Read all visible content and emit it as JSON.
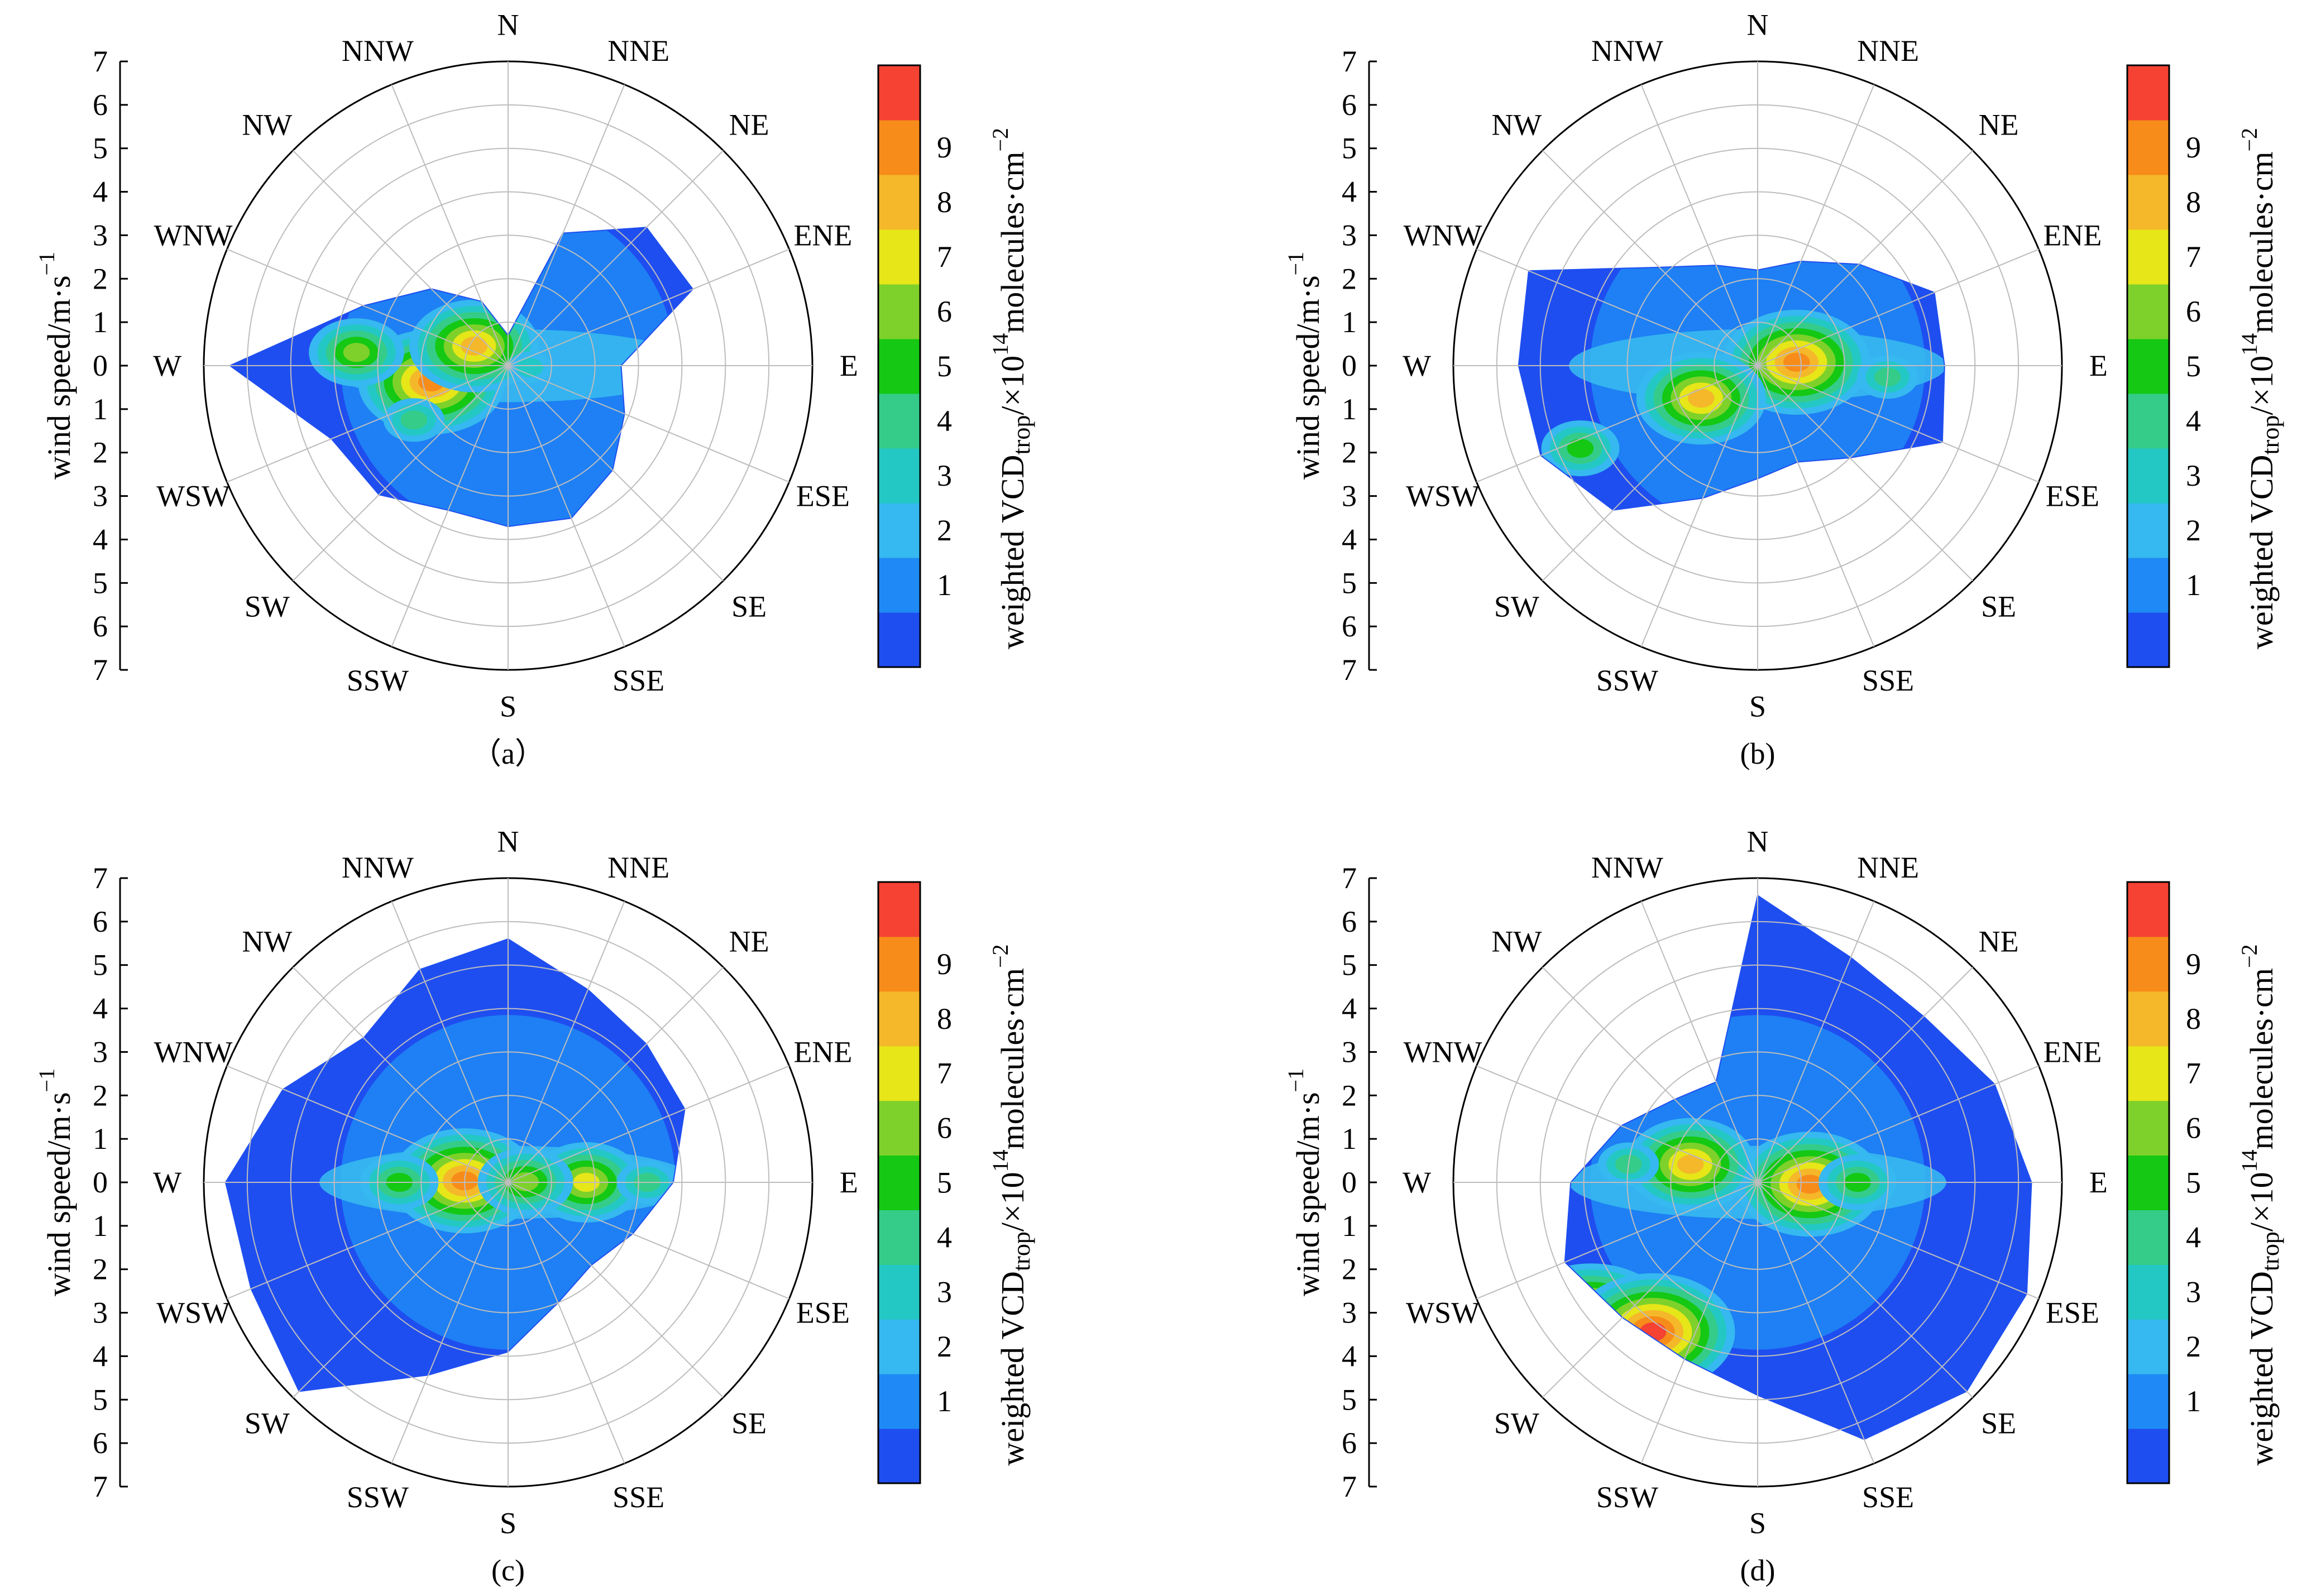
{
  "figure": {
    "direction_labels": [
      "N",
      "NNE",
      "NE",
      "ENE",
      "E",
      "ESE",
      "SE",
      "SSE",
      "S",
      "SSW",
      "SW",
      "WSW",
      "W",
      "WNW",
      "NW",
      "NNW"
    ],
    "wind_speed_ticks_upper": [
      "7",
      "6",
      "5",
      "4",
      "3",
      "2",
      "1",
      "0"
    ],
    "wind_speed_ticks_lower": [
      "1",
      "2",
      "3",
      "4",
      "5",
      "6",
      "7"
    ],
    "y_axis_title": "wind speed/m·s",
    "y_axis_title_sup": "−1",
    "colorbar": {
      "ticks": [
        "1",
        "2",
        "3",
        "4",
        "5",
        "6",
        "7",
        "8",
        "9"
      ],
      "title_main": "weighted VCD",
      "title_sub": "trop",
      "title_mid": "/×10",
      "title_exp": "14",
      "title_units": "molecules·cm",
      "title_units_exp": "−2",
      "colors": [
        "#1f4ef0",
        "#1f8af5",
        "#36b8f0",
        "#23c8c4",
        "#35cc8a",
        "#14c814",
        "#7ed12a",
        "#e6e619",
        "#f5b82a",
        "#f78c1a",
        "#f54233"
      ]
    }
  },
  "chart_data": [
    {
      "type": "polar-contour",
      "panel_label": "（a）",
      "theta_labels": [
        "N",
        "NNE",
        "NE",
        "ENE",
        "E",
        "ESE",
        "SE",
        "SSE",
        "S",
        "SSW",
        "SW",
        "WSW",
        "W",
        "WNW",
        "NW",
        "NNW"
      ],
      "r_range": [
        0,
        7
      ],
      "colorbar_range": [
        0,
        10
      ],
      "domain_outline": [
        [
          "N",
          0.7
        ],
        [
          "NNE",
          3.3
        ],
        [
          "NE",
          4.5
        ],
        [
          "ENE",
          4.6
        ],
        [
          "E",
          2.6
        ],
        [
          "ESE",
          2.9
        ],
        [
          "SE",
          3.4
        ],
        [
          "SSE",
          3.8
        ],
        [
          "S",
          3.7
        ],
        [
          "SSW",
          3.6
        ],
        [
          "SW",
          4.2
        ],
        [
          "WSW",
          4.4
        ],
        [
          "W",
          6.4
        ],
        [
          "WNW",
          3.6
        ],
        [
          "NW",
          2.5
        ],
        [
          "NNW",
          1.6
        ]
      ],
      "hotspots": [
        {
          "dir_deg": 258,
          "r": 1.8,
          "value": 9
        },
        {
          "dir_deg": 300,
          "r": 0.9,
          "value": 8
        },
        {
          "dir_deg": 275,
          "r": 3.5,
          "value": 6
        },
        {
          "dir_deg": 240,
          "r": 2.5,
          "value": 4
        },
        {
          "dir_deg": 95,
          "r": 0.5,
          "value": 3
        }
      ]
    },
    {
      "type": "polar-contour",
      "panel_label": "(b)",
      "theta_labels": [
        "N",
        "NNE",
        "NE",
        "ENE",
        "E",
        "ESE",
        "SE",
        "SSE",
        "S",
        "SSW",
        "SW",
        "WSW",
        "W",
        "WNW",
        "NW",
        "NNW"
      ],
      "r_range": [
        0,
        7
      ],
      "colorbar_range": [
        0,
        10
      ],
      "domain_outline": [
        [
          "N",
          2.2
        ],
        [
          "NNE",
          2.6
        ],
        [
          "NE",
          3.3
        ],
        [
          "ENE",
          4.4
        ],
        [
          "E",
          4.3
        ],
        [
          "ESE",
          4.6
        ],
        [
          "SE",
          3.0
        ],
        [
          "SSE",
          2.4
        ],
        [
          "S",
          2.6
        ],
        [
          "SSW",
          3.3
        ],
        [
          "SW",
          4.7
        ],
        [
          "WSW",
          5.4
        ],
        [
          "W",
          5.5
        ],
        [
          "WNW",
          5.7
        ],
        [
          "NW",
          3.2
        ],
        [
          "NNW",
          2.5
        ]
      ],
      "hotspots": [
        {
          "dir_deg": 85,
          "r": 0.9,
          "value": 9
        },
        {
          "dir_deg": 240,
          "r": 1.5,
          "value": 8
        },
        {
          "dir_deg": 245,
          "r": 4.5,
          "value": 5
        },
        {
          "dir_deg": 95,
          "r": 3.0,
          "value": 4
        }
      ]
    },
    {
      "type": "polar-contour",
      "panel_label": "(c)",
      "theta_labels": [
        "N",
        "NNE",
        "NE",
        "ENE",
        "E",
        "ESE",
        "SE",
        "SSE",
        "S",
        "SSW",
        "SW",
        "WSW",
        "W",
        "WNW",
        "NW",
        "NNW"
      ],
      "r_range": [
        0,
        7
      ],
      "colorbar_range": [
        0,
        10
      ],
      "domain_outline": [
        [
          "N",
          5.6
        ],
        [
          "NNE",
          4.8
        ],
        [
          "NE",
          4.5
        ],
        [
          "ENE",
          4.4
        ],
        [
          "E",
          3.8
        ],
        [
          "ESE",
          3.1
        ],
        [
          "SE",
          2.7
        ],
        [
          "SSE",
          3.0
        ],
        [
          "S",
          3.9
        ],
        [
          "SSW",
          4.8
        ],
        [
          "SW",
          6.8
        ],
        [
          "WSW",
          6.4
        ],
        [
          "W",
          6.5
        ],
        [
          "WNW",
          5.6
        ],
        [
          "NW",
          4.7
        ],
        [
          "NNW",
          5.3
        ]
      ],
      "hotspots": [
        {
          "dir_deg": 272,
          "r": 1.0,
          "value": 9
        },
        {
          "dir_deg": 90,
          "r": 1.8,
          "value": 7
        },
        {
          "dir_deg": 88,
          "r": 0.4,
          "value": 6
        },
        {
          "dir_deg": 270,
          "r": 2.5,
          "value": 5
        },
        {
          "dir_deg": 90,
          "r": 3.2,
          "value": 4
        }
      ]
    },
    {
      "type": "polar-contour",
      "panel_label": "(d)",
      "theta_labels": [
        "N",
        "NNE",
        "NE",
        "ENE",
        "E",
        "ESE",
        "SE",
        "SSE",
        "S",
        "SSW",
        "SW",
        "WSW",
        "W",
        "WNW",
        "NW",
        "NNW"
      ],
      "r_range": [
        0,
        7
      ],
      "colorbar_range": [
        0,
        10
      ],
      "domain_outline": [
        [
          "N",
          6.6
        ],
        [
          "NNE",
          5.6
        ],
        [
          "NE",
          5.4
        ],
        [
          "ENE",
          5.9
        ],
        [
          "E",
          6.3
        ],
        [
          "ESE",
          6.7
        ],
        [
          "SE",
          6.8
        ],
        [
          "SSE",
          6.4
        ],
        [
          "S",
          4.9
        ],
        [
          "SSW",
          4.4
        ],
        [
          "SW",
          4.4
        ],
        [
          "WSW",
          4.8
        ],
        [
          "W",
          4.3
        ],
        [
          "WNW",
          3.4
        ],
        [
          "NW",
          2.7
        ],
        [
          "NNW",
          2.5
        ]
      ],
      "hotspots": [
        {
          "dir_deg": 92,
          "r": 1.2,
          "value": 9
        },
        {
          "dir_deg": 285,
          "r": 1.6,
          "value": 8
        },
        {
          "dir_deg": 230,
          "r": 5.0,
          "value": 10
        },
        {
          "dir_deg": 215,
          "r": 4.2,
          "value": 10
        },
        {
          "dir_deg": 90,
          "r": 2.3,
          "value": 5
        },
        {
          "dir_deg": 278,
          "r": 3.0,
          "value": 4
        }
      ]
    }
  ]
}
